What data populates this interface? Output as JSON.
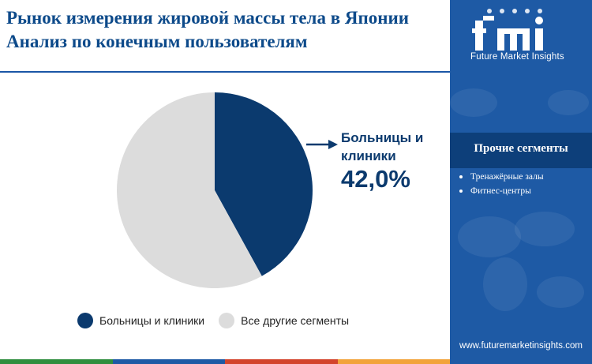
{
  "title": "Рынок измерения жировой массы тела в Японии Анализ по конечным пользователям",
  "chart_data": {
    "type": "pie",
    "slices": [
      {
        "label": "Больницы и клиники",
        "value": 42.0,
        "color": "#0b3a6e"
      },
      {
        "label": "Все другие сегменты",
        "value": 58.0,
        "color": "#dcdcdc"
      }
    ],
    "start_angle": "12 o'clock",
    "direction": "clockwise",
    "callout": {
      "label": "Больницы и клиники",
      "value": "42,0%"
    },
    "legend": {
      "placement": "bottom-left"
    }
  },
  "legend": {
    "items": [
      {
        "label": "Больницы и клиники",
        "color": "#0b3a6e"
      },
      {
        "label": "Все другие сегменты",
        "color": "#dcdcdc"
      }
    ]
  },
  "sidebar": {
    "logo_icon": "fmi-logo-icon",
    "logo_text": "Future Market Insights",
    "segments_title": "Прочие сегменты",
    "segments": [
      "Тренажёрные залы",
      "Фитнес-центры"
    ],
    "website": "www.futuremarketinsights.com"
  },
  "colors": {
    "title": "#0d4a8a",
    "sidebar": "#1e5aa5",
    "sidebar_box": "#0d3f7a",
    "primary": "#0b3a6e",
    "secondary": "#dcdcdc",
    "bottom_bar": [
      "#2f8e3e",
      "#1e5aa5",
      "#d3442c",
      "#f2a33a"
    ]
  }
}
